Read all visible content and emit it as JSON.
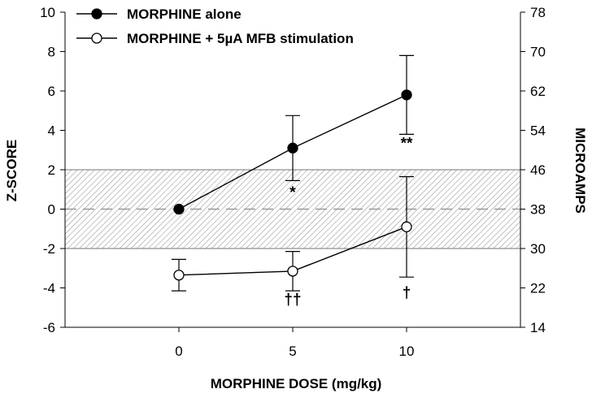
{
  "chart_data": {
    "type": "line",
    "xlabel": "MORPHINE DOSE (mg/kg)",
    "ylabel": "Z-SCORE",
    "y2label": "MICROAMPS",
    "x": [
      0,
      5,
      10
    ],
    "xticks": [
      "0",
      "5",
      "10"
    ],
    "xlim": [
      -5,
      15
    ],
    "ylim": [
      -6,
      10
    ],
    "yticks": [
      "-6",
      "-4",
      "-2",
      "0",
      "2",
      "4",
      "6",
      "8",
      "10"
    ],
    "y2ticks": [
      "14",
      "22",
      "30",
      "38",
      "46",
      "54",
      "62",
      "70",
      "78"
    ],
    "shaded_band": [
      -2,
      2
    ],
    "reference_line": 0,
    "series": [
      {
        "name": "MORPHINE alone",
        "marker": "filled-circle",
        "values": [
          0.0,
          3.1,
          5.8
        ],
        "error_upper": [
          null,
          1.65,
          2.0
        ],
        "error_lower": [
          null,
          1.65,
          2.0
        ]
      },
      {
        "name": "MORPHINE + 5µA MFB stimulation",
        "marker": "open-circle",
        "values": [
          -3.35,
          -3.15,
          -0.9
        ],
        "error_upper": [
          0.8,
          1.0,
          2.55
        ],
        "error_lower": [
          0.8,
          1.0,
          2.55
        ]
      }
    ],
    "annotations": [
      {
        "text": "*",
        "x": 5,
        "y": 0.6
      },
      {
        "text": "**",
        "x": 10,
        "y": 3.1
      },
      {
        "text": "††",
        "x": 5,
        "y": -4.85
      },
      {
        "text": "†",
        "x": 10,
        "y": -4.5
      }
    ],
    "colors": {
      "line": "#000000",
      "band_hatch": "#8a8a8a",
      "reference": "#9a9a9a"
    }
  }
}
